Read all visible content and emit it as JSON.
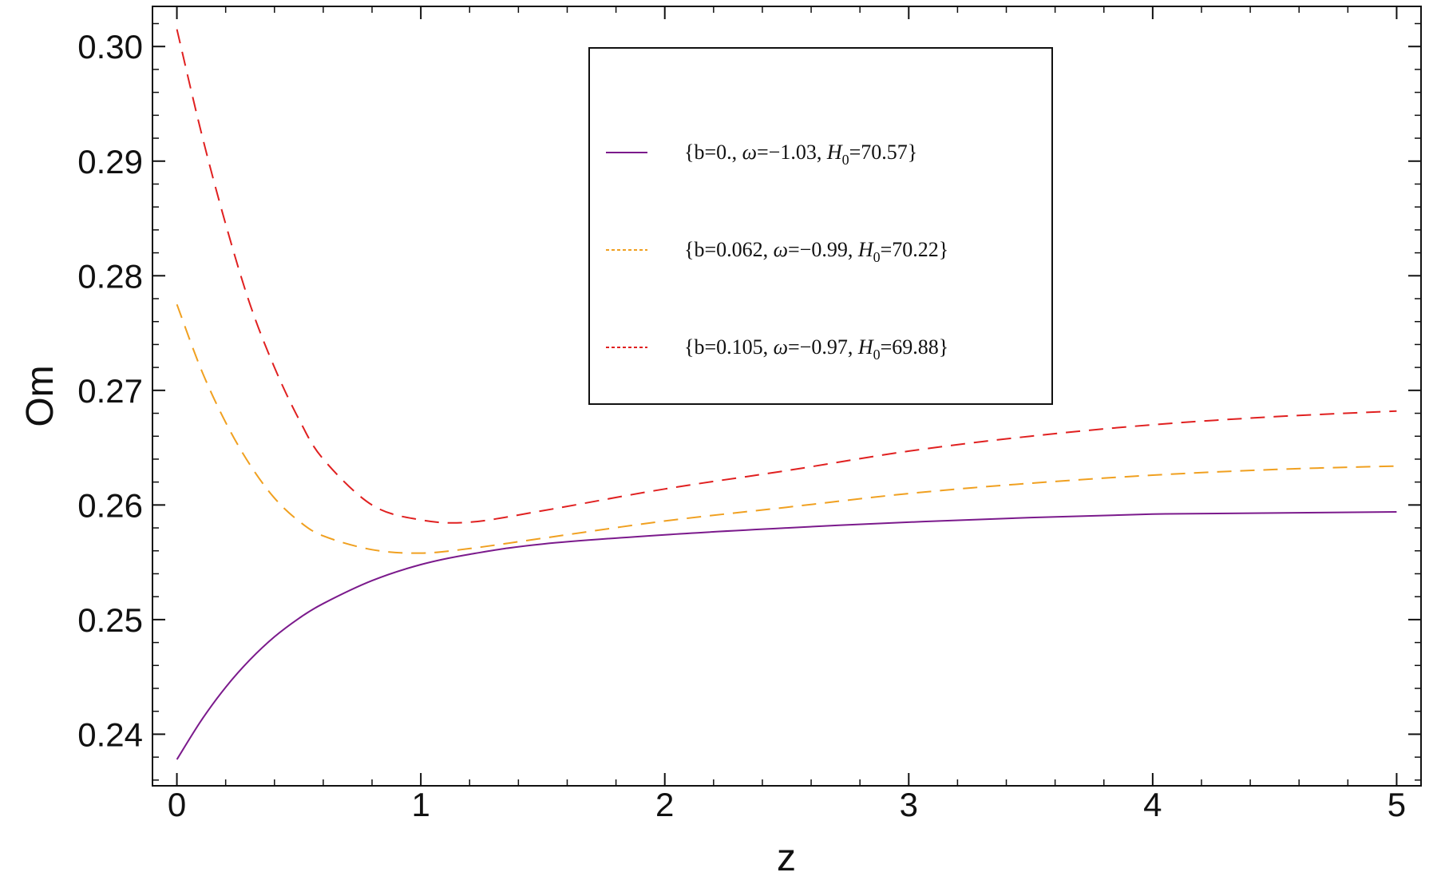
{
  "chart_data": {
    "type": "line",
    "xlabel": "z",
    "ylabel": "Om",
    "xlim": [
      -0.1,
      5.1
    ],
    "ylim": [
      0.2355,
      0.3035
    ],
    "x_ticks": [
      {
        "value": 0,
        "label": "0"
      },
      {
        "value": 1,
        "label": "1"
      },
      {
        "value": 2,
        "label": "2"
      },
      {
        "value": 3,
        "label": "3"
      },
      {
        "value": 4,
        "label": "4"
      },
      {
        "value": 5,
        "label": "5"
      }
    ],
    "y_ticks": [
      {
        "value": 0.24,
        "label": "0.24"
      },
      {
        "value": 0.25,
        "label": "0.25"
      },
      {
        "value": 0.26,
        "label": "0.26"
      },
      {
        "value": 0.27,
        "label": "0.27"
      },
      {
        "value": 0.28,
        "label": "0.28"
      },
      {
        "value": 0.29,
        "label": "0.29"
      },
      {
        "value": 0.3,
        "label": "0.30"
      }
    ],
    "grid": false,
    "legend_position": "top-center",
    "series": [
      {
        "name": "{b=0., ω=−1.03, H0=70.57}",
        "legend": {
          "b": "{b=0., ",
          "omega": "ω",
          "omega_val": "=−1.03, ",
          "H": "H",
          "H_sub": "0",
          "H_val": "=70.57}"
        },
        "color": "#7b1a8c",
        "style": "solid",
        "x": [
          0,
          0.1,
          0.2,
          0.3,
          0.4,
          0.5,
          0.6,
          0.8,
          1.0,
          1.2,
          1.5,
          2.0,
          2.5,
          3.0,
          3.5,
          4.0,
          4.5,
          5.0
        ],
        "y": [
          0.2378,
          0.2412,
          0.2441,
          0.2465,
          0.2485,
          0.2501,
          0.2514,
          0.2534,
          0.2548,
          0.2557,
          0.2566,
          0.2574,
          0.258,
          0.2585,
          0.2589,
          0.2592,
          0.2593,
          0.2594
        ]
      },
      {
        "name": "{b=0.062, ω=−0.99, H0=70.22}",
        "legend": {
          "b": "{b=0.062, ",
          "omega": "ω",
          "omega_val": "=−0.99, ",
          "H": "H",
          "H_sub": "0",
          "H_val": "=70.22}"
        },
        "color": "#f0a020",
        "style": "dashed",
        "x": [
          0,
          0.1,
          0.2,
          0.3,
          0.4,
          0.5,
          0.6,
          0.8,
          1.0,
          1.2,
          1.5,
          2.0,
          2.5,
          3.0,
          3.5,
          4.0,
          4.5,
          5.0
        ],
        "y": [
          0.2775,
          0.2718,
          0.2672,
          0.2635,
          0.2606,
          0.2586,
          0.2573,
          0.2561,
          0.2558,
          0.2562,
          0.2571,
          0.2586,
          0.2598,
          0.261,
          0.2619,
          0.2626,
          0.2631,
          0.2634
        ]
      },
      {
        "name": "{b=0.105, ω=−0.97, H0=69.88}",
        "legend": {
          "b": "{b=0.105, ",
          "omega": "ω",
          "omega_val": "=−0.97, ",
          "H": "H",
          "H_sub": "0",
          "H_val": "=69.88}"
        },
        "color": "#e02020",
        "style": "dashed",
        "x": [
          0,
          0.1,
          0.2,
          0.3,
          0.4,
          0.5,
          0.6,
          0.8,
          1.0,
          1.2,
          1.5,
          2.0,
          2.5,
          3.0,
          3.5,
          4.0,
          4.5,
          5.0
        ],
        "y": [
          0.3015,
          0.2925,
          0.2845,
          0.2775,
          0.272,
          0.2675,
          0.264,
          0.26,
          0.2587,
          0.2585,
          0.2595,
          0.2614,
          0.263,
          0.2647,
          0.266,
          0.267,
          0.2677,
          0.2682
        ]
      }
    ]
  }
}
